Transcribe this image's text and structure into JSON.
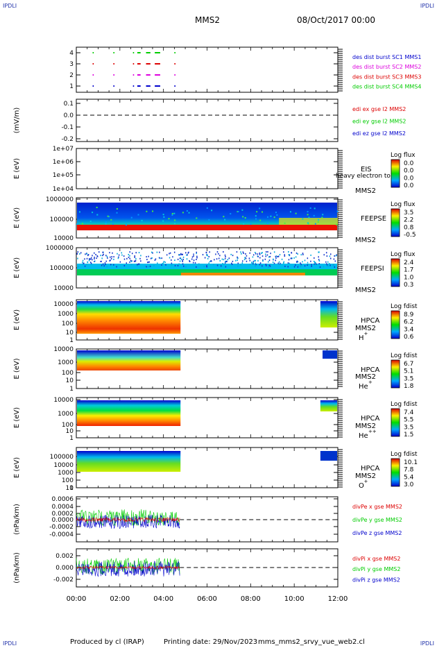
{
  "corners": {
    "tl": "IPDLI",
    "tr": "IPDLI",
    "bl": "IPDLI",
    "br": "IPDLI"
  },
  "header": {
    "left": "MMS2",
    "right": "08/Oct/2017 00:00"
  },
  "footer": {
    "produced": "Produced by cl (IRAP)",
    "printing": "Printing date: 29/Nov/2023",
    "script": "mms_mms2_srvy_vue_web2.cl"
  },
  "time_axis": {
    "ticks": [
      "00:00",
      "02:00",
      "04:00",
      "06:00",
      "08:00",
      "10:00",
      "12:00"
    ],
    "range_hours": [
      0,
      12
    ]
  },
  "colors": {
    "red": "#dd0000",
    "green": "#00cc00",
    "blue": "#0000cc",
    "magenta": "#dd00dd",
    "black": "#000000"
  },
  "chart_data": [
    {
      "type": "line",
      "name": "burst",
      "ylabel": "",
      "yticks": [
        "4",
        "3",
        "2",
        "1"
      ],
      "legend": [
        {
          "text": "des dist burst SC1 MMS1",
          "color": "#0000cc"
        },
        {
          "text": "des dist burst SC2 MMS2",
          "color": "#dd00dd"
        },
        {
          "text": "des dist burst SC3 MMS3",
          "color": "#dd0000"
        },
        {
          "text": "des dist burst SC4 MMS4",
          "color": "#00cc00"
        }
      ],
      "series": [
        {
          "level": 4,
          "color": "#00cc00",
          "intervals": [
            [
              0.75,
              0.8
            ],
            [
              1.7,
              1.75
            ],
            [
              2.6,
              2.65
            ],
            [
              2.8,
              2.95
            ],
            [
              3.2,
              3.4
            ],
            [
              3.6,
              3.85
            ],
            [
              4.5,
              4.55
            ]
          ]
        },
        {
          "level": 3,
          "color": "#dd0000",
          "intervals": [
            [
              0.75,
              0.8
            ],
            [
              1.7,
              1.75
            ],
            [
              2.6,
              2.65
            ],
            [
              2.8,
              2.95
            ],
            [
              3.2,
              3.4
            ],
            [
              3.6,
              3.85
            ],
            [
              4.5,
              4.55
            ]
          ]
        },
        {
          "level": 2,
          "color": "#dd00dd",
          "intervals": [
            [
              0.75,
              0.8
            ],
            [
              1.7,
              1.75
            ],
            [
              2.6,
              2.65
            ],
            [
              2.8,
              2.95
            ],
            [
              3.2,
              3.4
            ],
            [
              3.6,
              3.85
            ],
            [
              4.5,
              4.55
            ]
          ]
        },
        {
          "level": 1,
          "color": "#0000cc",
          "intervals": [
            [
              0.75,
              0.8
            ],
            [
              1.7,
              1.75
            ],
            [
              2.6,
              2.65
            ],
            [
              2.8,
              2.95
            ],
            [
              3.2,
              3.4
            ],
            [
              3.6,
              3.85
            ],
            [
              4.5,
              4.55
            ]
          ]
        }
      ]
    },
    {
      "type": "line",
      "name": "edi",
      "ylabel": "(mV/m)",
      "yticks": [
        "0.1",
        "0.0",
        "-0.1",
        "-0.2"
      ],
      "ylim": [
        -0.2,
        0.15
      ],
      "legend": [
        {
          "text": "edi ex gse l2 MMS2",
          "color": "#dd0000"
        },
        {
          "text": "edi ey gse l2 MMS2",
          "color": "#00cc00"
        },
        {
          "text": "edi ez gse l2 MMS2",
          "color": "#0000cc"
        }
      ]
    },
    {
      "type": "heatmap",
      "name": "eis",
      "ylabel": "E (eV)",
      "yticks": [
        "1e+07",
        "1e+06",
        "1e+05",
        "1e+04"
      ],
      "label": [
        "EIS",
        "MMS2"
      ],
      "overlay": "heavy electron to",
      "colorbar": {
        "title": "Log flux",
        "ticks": [
          "0.0",
          "0.0",
          "0.0",
          "0.0"
        ]
      }
    },
    {
      "type": "heatmap",
      "name": "feeps_e",
      "ylabel": "E (eV)",
      "yticks": [
        "1000000",
        "100000",
        "10000"
      ],
      "label": [
        "FEEPSE",
        "MMS2"
      ],
      "colorbar": {
        "title": "Log flux",
        "ticks": [
          "3.5",
          "2.2",
          "0.8",
          "-0.5"
        ]
      },
      "data_range_hours": [
        0,
        12
      ]
    },
    {
      "type": "heatmap",
      "name": "feeps_i",
      "ylabel": "E (eV)",
      "yticks": [
        "1000000",
        "100000",
        "10000"
      ],
      "label": [
        "FEEPSI",
        "MMS2"
      ],
      "colorbar": {
        "title": "Log flux",
        "ticks": [
          "2.4",
          "1.7",
          "1.0",
          "0.3"
        ]
      },
      "data_range_hours": [
        0,
        12
      ]
    },
    {
      "type": "heatmap",
      "name": "hpca_h",
      "ylabel": "E (eV)",
      "yticks": [
        "10000",
        "1000",
        "100",
        "10",
        "1"
      ],
      "label": [
        "HPCA",
        "MMS2",
        "H",
        "+"
      ],
      "colorbar": {
        "title": "Log fdist",
        "ticks": [
          "8.9",
          "6.2",
          "3.4",
          "0.6"
        ]
      },
      "data_range_hours": [
        [
          0,
          4.75
        ],
        [
          11.2,
          12
        ]
      ]
    },
    {
      "type": "heatmap",
      "name": "hpca_he",
      "ylabel": "E (eV)",
      "yticks": [
        "10000",
        "1000",
        "100",
        "10",
        "1"
      ],
      "label": [
        "HPCA",
        "MMS2",
        "He",
        "+"
      ],
      "colorbar": {
        "title": "Log fdist",
        "ticks": [
          "6.7",
          "5.1",
          "3.5",
          "1.8"
        ]
      },
      "data_range_hours": [
        [
          0,
          4.75
        ],
        [
          11.2,
          12
        ]
      ]
    },
    {
      "type": "heatmap",
      "name": "hpca_hepp",
      "ylabel": "E (eV)",
      "yticks": [
        "10000",
        "1000",
        "100",
        "10",
        "1"
      ],
      "label": [
        "HPCA",
        "MMS2",
        "He",
        "++"
      ],
      "colorbar": {
        "title": "Log fdist",
        "ticks": [
          "7.4",
          "5.5",
          "3.5",
          "1.5"
        ]
      },
      "data_range_hours": [
        [
          0,
          4.75
        ],
        [
          11.2,
          12
        ]
      ]
    },
    {
      "type": "heatmap",
      "name": "hpca_o",
      "ylabel": "E (eV)",
      "yticks": [
        "100000",
        "10000",
        "1000",
        "100",
        "10",
        "1"
      ],
      "label": [
        "HPCA",
        "MMS2",
        "O",
        "+"
      ],
      "colorbar": {
        "title": "Log fdist",
        "ticks": [
          "10.1",
          "7.8",
          "5.4",
          "3.0"
        ]
      },
      "data_range_hours": [
        [
          0,
          4.75
        ],
        [
          11.2,
          12
        ]
      ]
    },
    {
      "type": "line",
      "name": "divpe",
      "ylabel": "(nPa/km)",
      "yticks": [
        "0.0006",
        "0.0004",
        "0.0002",
        "0.0000",
        "-0.0002",
        "-0.0004"
      ],
      "ylim": [
        -0.0005,
        0.00065
      ],
      "legend": [
        {
          "text": "divPe x gse MMS2",
          "color": "#dd0000"
        },
        {
          "text": "divPe y gse MMS2",
          "color": "#00cc00"
        },
        {
          "text": "divPe z gse MMS2",
          "color": "#0000cc"
        }
      ],
      "data_range_hours": [
        0,
        4.75
      ]
    },
    {
      "type": "line",
      "name": "divpi",
      "ylabel": "(nPa/km)",
      "yticks": [
        "0.002",
        "0.000",
        "-0.002"
      ],
      "ylim": [
        -0.0035,
        0.003
      ],
      "legend": [
        {
          "text": "divPi x gse MMS2",
          "color": "#dd0000"
        },
        {
          "text": "divPi y gse MMS2",
          "color": "#00cc00"
        },
        {
          "text": "divPi z gse MMS2",
          "color": "#0000cc"
        }
      ],
      "data_range_hours": [
        0,
        4.75
      ]
    }
  ]
}
